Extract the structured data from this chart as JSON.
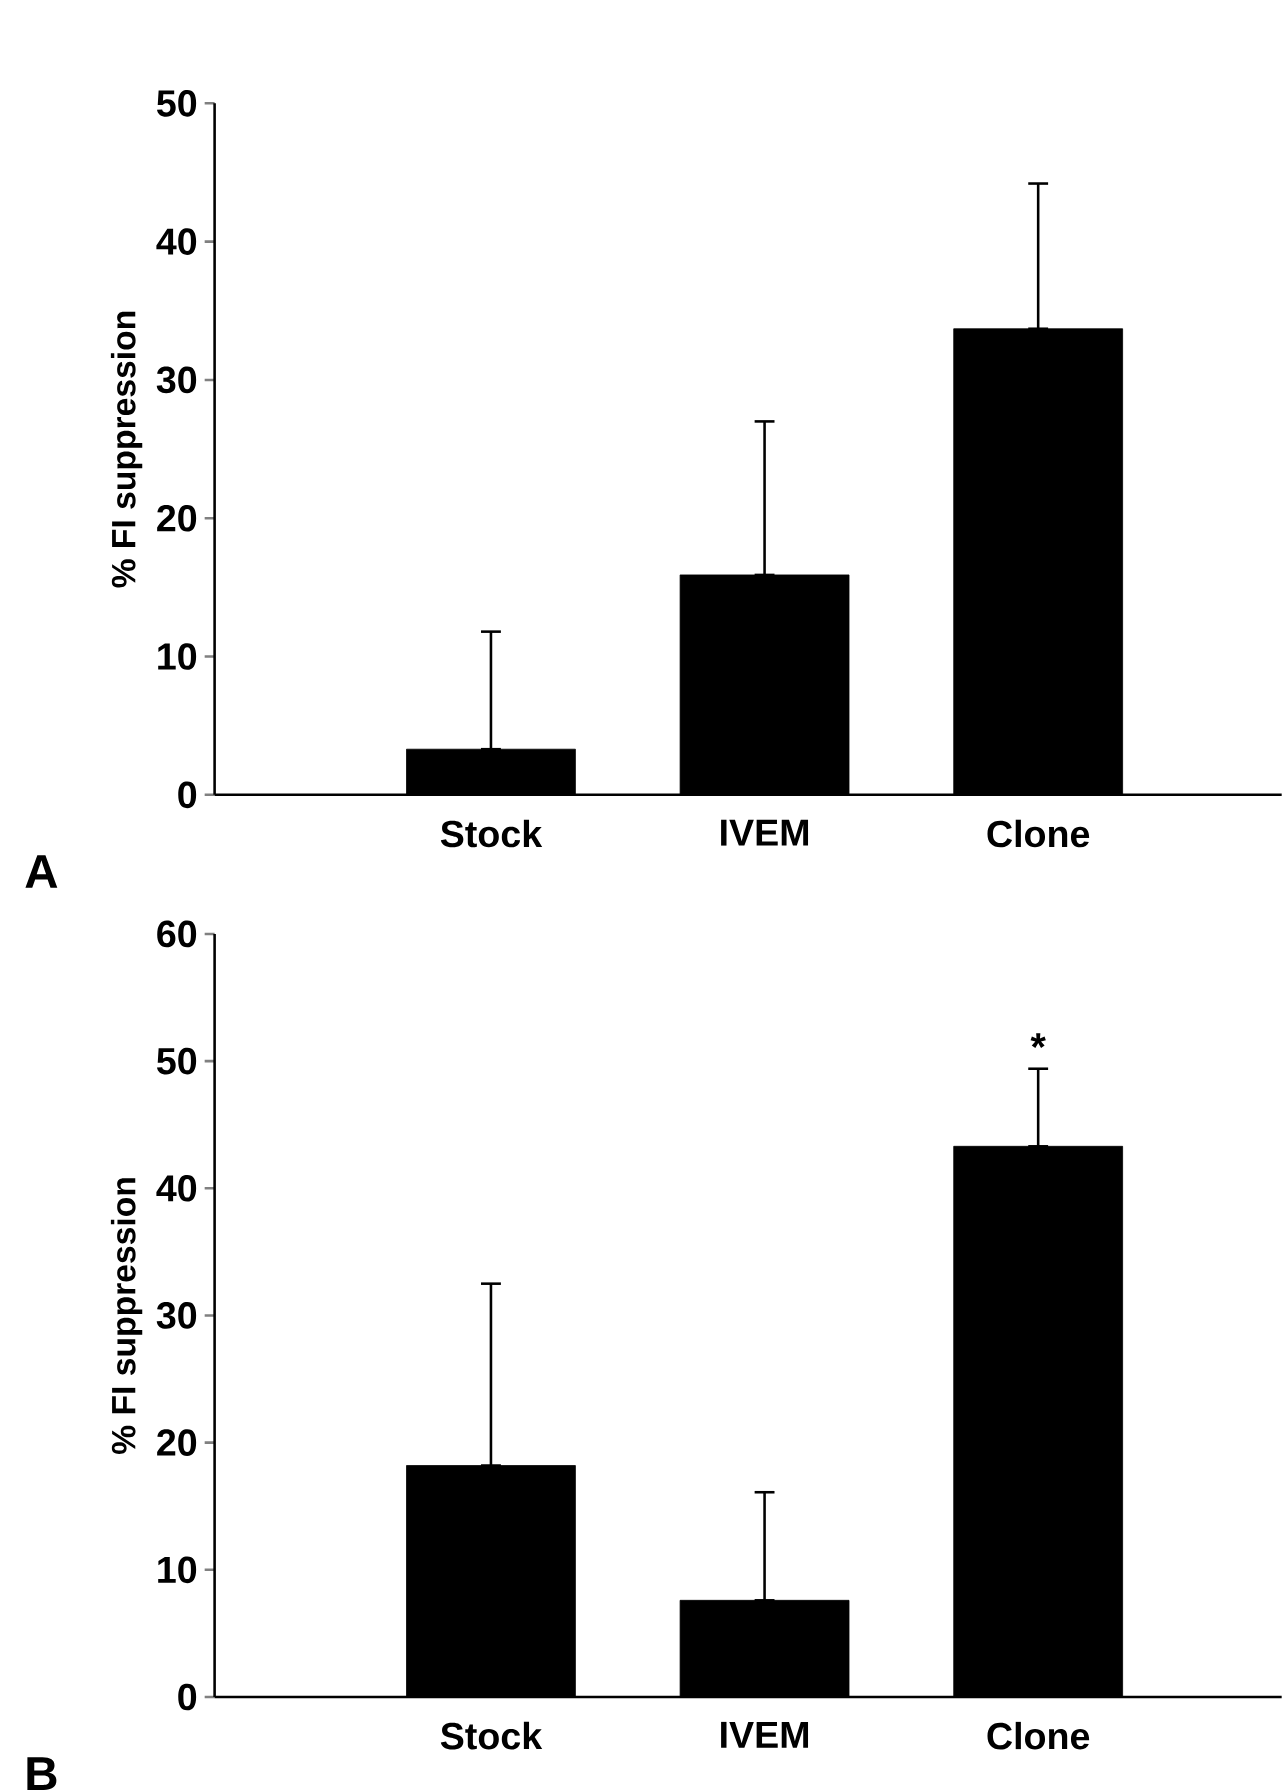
{
  "chart_data": [
    {
      "type": "bar",
      "categories": [
        "Stock",
        "IVEM",
        "Clone"
      ],
      "values": [
        3.3,
        15.9,
        33.7
      ],
      "errors": [
        [
          3.3,
          11.8
        ],
        [
          15.9,
          27.0
        ],
        [
          33.7,
          44.2
        ]
      ],
      "color": "#000000",
      "ylabel": "% FI suppression",
      "ylim": [
        0,
        50
      ],
      "yticks": [
        0,
        10,
        20,
        30,
        40,
        50
      ],
      "annotations": [
        "A"
      ]
    },
    {
      "type": "bar",
      "categories": [
        "Stock",
        "IVEM",
        "Clone"
      ],
      "values": [
        18.2,
        7.6,
        43.3
      ],
      "errors": [
        [
          18.2,
          32.5
        ],
        [
          7.6,
          16.1
        ],
        [
          43.3,
          49.4
        ]
      ],
      "color": "#000000",
      "ylabel": "% FI suppression",
      "ylim": [
        0,
        60
      ],
      "yticks": [
        0,
        10,
        20,
        30,
        40,
        50,
        60
      ],
      "annotations": [
        "B",
        "*"
      ]
    }
  ]
}
